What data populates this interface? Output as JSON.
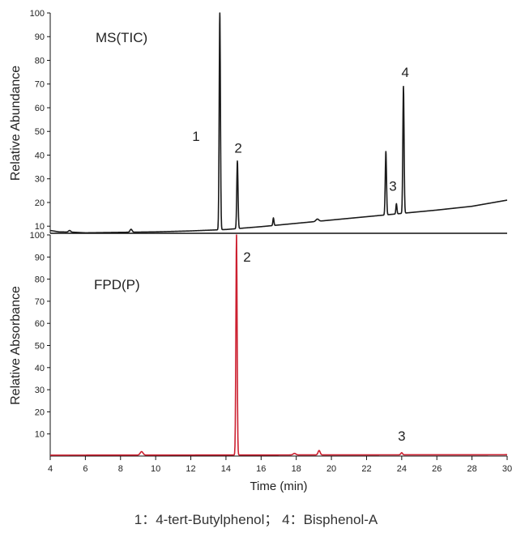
{
  "chart_data": [
    {
      "type": "line",
      "title": "MS(TIC)",
      "ylabel": "Relative Abundance",
      "xlim": [
        4,
        30
      ],
      "ylim": [
        7,
        100
      ],
      "yticks": [
        10,
        20,
        30,
        40,
        50,
        60,
        70,
        80,
        90,
        100
      ],
      "color": "#1a1a1a",
      "baseline": [
        [
          4.0,
          8.2
        ],
        [
          4.5,
          7.6
        ],
        [
          5.2,
          7.5
        ],
        [
          6,
          7.2
        ],
        [
          8,
          7.4
        ],
        [
          10,
          7.6
        ],
        [
          12,
          8.0
        ],
        [
          14,
          8.6
        ],
        [
          16,
          9.8
        ],
        [
          18,
          11.2
        ],
        [
          20,
          12.6
        ],
        [
          22,
          14.0
        ],
        [
          24,
          15.4
        ],
        [
          26,
          16.8
        ],
        [
          28,
          18.4
        ],
        [
          30,
          21.0
        ]
      ],
      "peaks": [
        {
          "x": 5.1,
          "height": 8.2,
          "width": 0.06
        },
        {
          "x": 8.6,
          "height": 8.7,
          "width": 0.06
        },
        {
          "x": 13.65,
          "height": 100,
          "width": 0.035
        },
        {
          "x": 14.65,
          "height": 37.5,
          "width": 0.035
        },
        {
          "x": 16.7,
          "height": 13.5,
          "width": 0.03
        },
        {
          "x": 19.2,
          "height": 13.0,
          "width": 0.08
        },
        {
          "x": 23.1,
          "height": 41.5,
          "width": 0.035
        },
        {
          "x": 23.7,
          "height": 19.5,
          "width": 0.03
        },
        {
          "x": 24.1,
          "height": 69,
          "width": 0.035
        }
      ],
      "peak_labels": [
        {
          "text": "1",
          "x": 12.3,
          "y": 46
        },
        {
          "text": "2",
          "x": 14.7,
          "y": 41
        },
        {
          "text": "3",
          "x": 23.5,
          "y": 25
        },
        {
          "text": "4",
          "x": 24.2,
          "y": 73
        }
      ]
    },
    {
      "type": "line",
      "title": "FPD(P)",
      "ylabel": "Relative Absorbance",
      "xlabel": "Time (min)",
      "xlim": [
        4,
        30
      ],
      "ylim": [
        0,
        100
      ],
      "xticks": [
        4,
        6,
        8,
        10,
        12,
        14,
        16,
        18,
        20,
        22,
        24,
        26,
        28,
        30
      ],
      "yticks": [
        10,
        20,
        30,
        40,
        50,
        60,
        70,
        80,
        90,
        100
      ],
      "color": "#cc2030",
      "baseline": [
        [
          4,
          0.4
        ],
        [
          30,
          0.6
        ]
      ],
      "peaks": [
        {
          "x": 9.2,
          "height": 2.0,
          "width": 0.08
        },
        {
          "x": 14.6,
          "height": 100,
          "width": 0.035
        },
        {
          "x": 17.9,
          "height": 1.2,
          "width": 0.08
        },
        {
          "x": 19.3,
          "height": 2.5,
          "width": 0.06
        },
        {
          "x": 24.0,
          "height": 1.5,
          "width": 0.05
        }
      ],
      "peak_labels": [
        {
          "text": "2",
          "x": 15.2,
          "y": 88
        },
        {
          "text": "3",
          "x": 24.0,
          "y": 7
        }
      ]
    }
  ],
  "caption": "1：4-tert-Butylphenol； 4：Bisphenol-A"
}
